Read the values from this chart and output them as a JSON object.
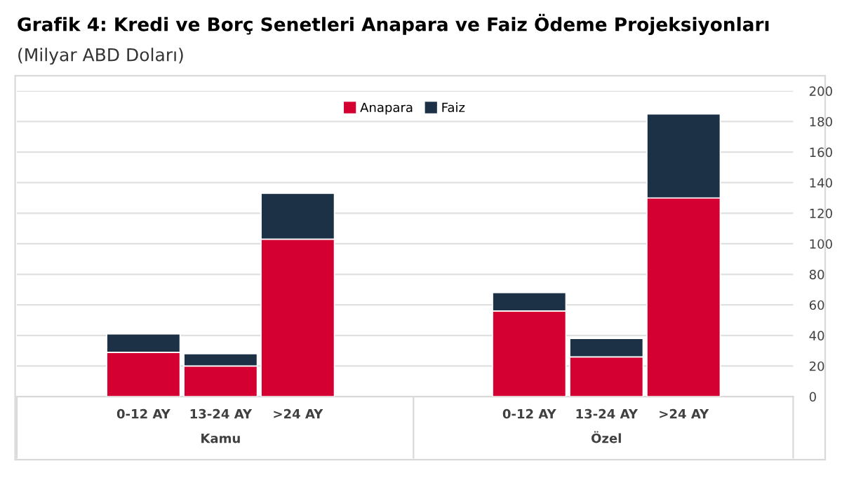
{
  "chart_data": {
    "type": "bar",
    "title": "Grafik 4: Kredi ve Borç Senetleri Anapara ve Faiz Ödeme Projeksiyonları",
    "subtitle": "(Milyar ABD Doları)",
    "categories": [
      "0-12 AY",
      "13-24 AY",
      ">24 AY",
      null,
      null,
      "0-12 AY",
      "13-24 AY",
      ">24 AY"
    ],
    "series": [
      {
        "name": "Anapara",
        "color": "#d50032",
        "values": [
          29,
          20,
          103,
          null,
          null,
          56,
          26,
          130
        ]
      },
      {
        "name": "Faiz",
        "color": "#1d3146",
        "values": [
          12,
          8,
          30,
          null,
          null,
          12,
          12,
          55
        ]
      }
    ],
    "stacked": true,
    "annotations": [
      "Kamu",
      "Özel"
    ],
    "ylim": [
      0,
      200
    ],
    "yticks": [
      0,
      20,
      40,
      60,
      80,
      100,
      120,
      140,
      160,
      180,
      200
    ],
    "grid": "y",
    "legend": "top"
  }
}
